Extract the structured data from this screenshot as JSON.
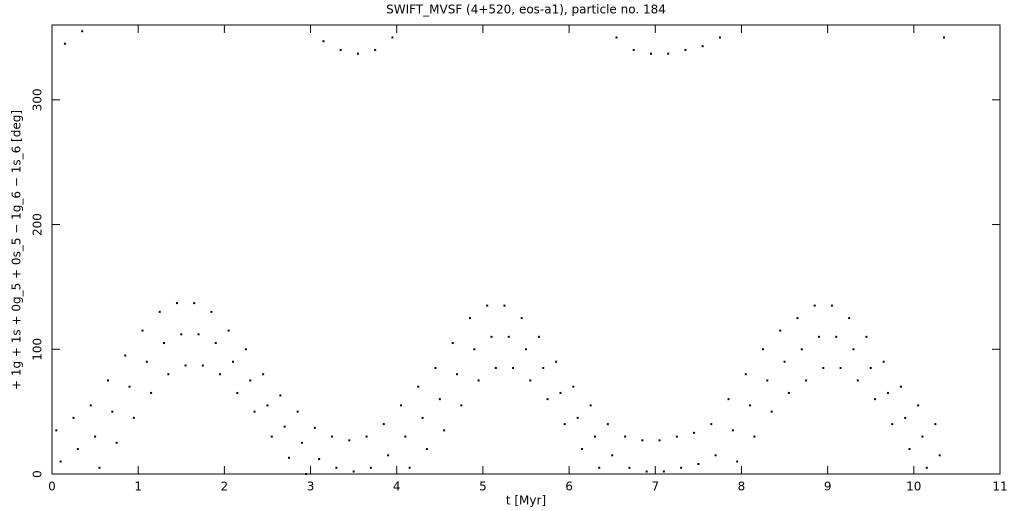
{
  "chart_data": {
    "type": "scatter",
    "title": "SWIFT_MVSF (4+520, eos-a1), particle no. 184",
    "x_label": "t [Myr]",
    "y_label": "+ 1g + 1s + 0g_5 + 0s_5 − 1g_6 − 1s_6 [deg]",
    "xlim": [
      0,
      11
    ],
    "ylim": [
      0,
      360
    ],
    "xticks": [
      0,
      1,
      2,
      3,
      4,
      5,
      6,
      7,
      8,
      9,
      10,
      11
    ],
    "yticks": [
      0,
      100,
      200,
      300
    ],
    "color": "#000000",
    "x": [
      0.05,
      0.1,
      0.15,
      0.25,
      0.3,
      0.35,
      0.45,
      0.5,
      0.55,
      0.65,
      0.7,
      0.75,
      0.85,
      0.9,
      0.95,
      1.05,
      1.1,
      1.15,
      1.25,
      1.3,
      1.35,
      1.45,
      1.5,
      1.55,
      1.65,
      1.7,
      1.75,
      1.85,
      1.9,
      1.95,
      2.05,
      2.1,
      2.15,
      2.25,
      2.3,
      2.35,
      2.45,
      2.5,
      2.55,
      2.65,
      2.7,
      2.75,
      2.85,
      2.9,
      2.95,
      3.05,
      3.1,
      3.15,
      3.25,
      3.3,
      3.35,
      3.45,
      3.5,
      3.55,
      3.65,
      3.7,
      3.75,
      3.85,
      3.9,
      3.95,
      4.05,
      4.1,
      4.15,
      4.25,
      4.3,
      4.35,
      4.45,
      4.5,
      4.55,
      4.65,
      4.7,
      4.75,
      4.85,
      4.9,
      4.95,
      5.05,
      5.1,
      5.15,
      5.25,
      5.3,
      5.35,
      5.45,
      5.5,
      5.55,
      5.65,
      5.7,
      5.75,
      5.85,
      5.9,
      5.95,
      6.05,
      6.1,
      6.15,
      6.25,
      6.3,
      6.35,
      6.45,
      6.5,
      6.55,
      6.65,
      6.7,
      6.75,
      6.85,
      6.9,
      6.95,
      7.05,
      7.1,
      7.15,
      7.25,
      7.3,
      7.35,
      7.45,
      7.5,
      7.55,
      7.65,
      7.7,
      7.75,
      7.85,
      7.9,
      7.95,
      8.05,
      8.1,
      8.15,
      8.25,
      8.3,
      8.35,
      8.45,
      8.5,
      8.55,
      8.65,
      8.7,
      8.75,
      8.85,
      8.9,
      8.95,
      9.05,
      9.1,
      9.15,
      9.25,
      9.3,
      9.35,
      9.45,
      9.5,
      9.55,
      9.65,
      9.7,
      9.75,
      9.85,
      9.9,
      9.95,
      10.05,
      10.1,
      10.15,
      10.25,
      10.3,
      10.35
    ],
    "y": [
      35,
      10,
      345,
      45,
      20,
      355,
      55,
      30,
      5,
      75,
      50,
      25,
      95,
      70,
      45,
      115,
      90,
      65,
      130,
      105,
      80,
      137,
      112,
      87,
      137,
      112,
      87,
      130,
      105,
      80,
      115,
      90,
      65,
      100,
      75,
      50,
      80,
      55,
      30,
      63,
      38,
      13,
      50,
      25,
      0,
      37,
      12,
      347,
      30,
      5,
      340,
      27,
      2,
      337,
      30,
      5,
      340,
      40,
      15,
      350,
      55,
      30,
      5,
      70,
      45,
      20,
      85,
      60,
      35,
      105,
      80,
      55,
      125,
      100,
      75,
      135,
      110,
      85,
      135,
      110,
      85,
      125,
      100,
      75,
      110,
      85,
      60,
      90,
      65,
      40,
      70,
      45,
      20,
      55,
      30,
      5,
      40,
      15,
      350,
      30,
      5,
      340,
      27,
      2,
      337,
      27,
      2,
      337,
      30,
      5,
      340,
      33,
      8,
      343,
      40,
      15,
      350,
      60,
      35,
      10,
      80,
      55,
      30,
      100,
      75,
      50,
      115,
      90,
      65,
      125,
      100,
      75,
      135,
      110,
      85,
      135,
      110,
      85,
      125,
      100,
      75,
      110,
      85,
      60,
      90,
      65,
      40,
      70,
      45,
      20,
      55,
      30,
      5,
      40,
      15,
      350
    ]
  }
}
